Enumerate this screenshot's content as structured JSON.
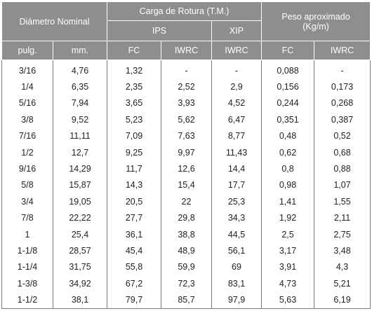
{
  "table": {
    "header": {
      "diametro": "Diámetro Nominal",
      "carga": "Carga de Rotura (T.M.)",
      "ips": "IPS",
      "xip": "XIP",
      "peso_line1": "Peso aproximado",
      "peso_line2": "(Kg/m)"
    },
    "columns": [
      "pulg.",
      "mm.",
      "FC",
      "IWRC",
      "IWRC",
      "FC",
      "IWRC"
    ],
    "rows": [
      [
        "3/16",
        "4,76",
        "1,32",
        "-",
        "-",
        "0,088",
        "-"
      ],
      [
        "1/4",
        "6,35",
        "2,35",
        "2,52",
        "2,9",
        "0,156",
        "0,173"
      ],
      [
        "5/16",
        "7,94",
        "3,65",
        "3,93",
        "4,52",
        "0,244",
        "0,268"
      ],
      [
        "3/8",
        "9,52",
        "5,23",
        "5,62",
        "6,47",
        "0,351",
        "0,387"
      ],
      [
        "7/16",
        "11,11",
        "7,09",
        "7,63",
        "8,77",
        "0,48",
        "0,52"
      ],
      [
        "1/2",
        "12,7",
        "9,25",
        "9,97",
        "11,43",
        "0,62",
        "0,68"
      ],
      [
        "9/16",
        "14,29",
        "11,7",
        "12,6",
        "14,4",
        "0,8",
        "0,88"
      ],
      [
        "5/8",
        "15,87",
        "14,3",
        "15,4",
        "17,7",
        "0,98",
        "1,07"
      ],
      [
        "3/4",
        "19,05",
        "20,5",
        "22",
        "25,3",
        "1,41",
        "1,55"
      ],
      [
        "7/8",
        "22,22",
        "27,7",
        "29,8",
        "34,3",
        "1,92",
        "2,11"
      ],
      [
        "1",
        "25,4",
        "36,1",
        "38,8",
        "44,5",
        "2,5",
        "2,75"
      ],
      [
        "1-1/8",
        "28,57",
        "45,4",
        "48,9",
        "56,1",
        "3,17",
        "3,48"
      ],
      [
        "1-1/4",
        "31,75",
        "55,8",
        "59,9",
        "69",
        "3,91",
        "4,3"
      ],
      [
        "1-3/8",
        "34,92",
        "67,2",
        "72,3",
        "83,1",
        "4,73",
        "5,21"
      ],
      [
        "1-1/2",
        "38,1",
        "79,7",
        "85,7",
        "97,9",
        "5,63",
        "6,19"
      ]
    ]
  }
}
